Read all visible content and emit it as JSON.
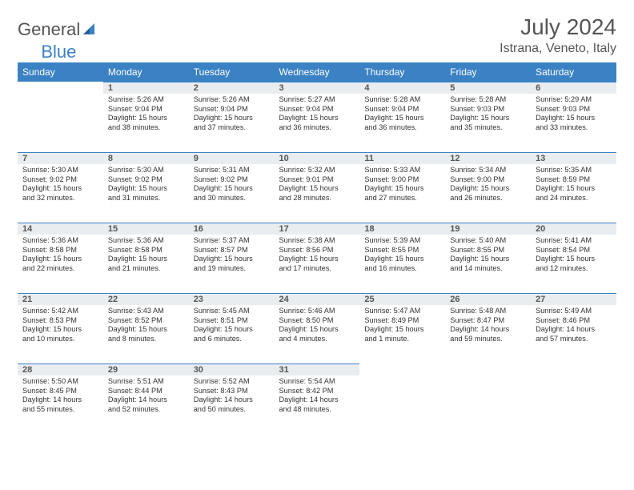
{
  "brand": {
    "part1": "General",
    "part2": "Blue"
  },
  "title": {
    "month": "July 2024",
    "location": "Istrana, Veneto, Italy"
  },
  "colors": {
    "header_bg": "#3b82c4",
    "daynum_bg": "#e9edf0",
    "daynum_border": "#3b82c4",
    "text": "#333333",
    "muted": "#555555",
    "background": "#ffffff"
  },
  "weekdays": [
    "Sunday",
    "Monday",
    "Tuesday",
    "Wednesday",
    "Thursday",
    "Friday",
    "Saturday"
  ],
  "weeks": [
    [
      null,
      {
        "n": "1",
        "sr": "Sunrise: 5:26 AM",
        "ss": "Sunset: 9:04 PM",
        "dl1": "Daylight: 15 hours",
        "dl2": "and 38 minutes."
      },
      {
        "n": "2",
        "sr": "Sunrise: 5:26 AM",
        "ss": "Sunset: 9:04 PM",
        "dl1": "Daylight: 15 hours",
        "dl2": "and 37 minutes."
      },
      {
        "n": "3",
        "sr": "Sunrise: 5:27 AM",
        "ss": "Sunset: 9:04 PM",
        "dl1": "Daylight: 15 hours",
        "dl2": "and 36 minutes."
      },
      {
        "n": "4",
        "sr": "Sunrise: 5:28 AM",
        "ss": "Sunset: 9:04 PM",
        "dl1": "Daylight: 15 hours",
        "dl2": "and 36 minutes."
      },
      {
        "n": "5",
        "sr": "Sunrise: 5:28 AM",
        "ss": "Sunset: 9:03 PM",
        "dl1": "Daylight: 15 hours",
        "dl2": "and 35 minutes."
      },
      {
        "n": "6",
        "sr": "Sunrise: 5:29 AM",
        "ss": "Sunset: 9:03 PM",
        "dl1": "Daylight: 15 hours",
        "dl2": "and 33 minutes."
      }
    ],
    [
      {
        "n": "7",
        "sr": "Sunrise: 5:30 AM",
        "ss": "Sunset: 9:02 PM",
        "dl1": "Daylight: 15 hours",
        "dl2": "and 32 minutes."
      },
      {
        "n": "8",
        "sr": "Sunrise: 5:30 AM",
        "ss": "Sunset: 9:02 PM",
        "dl1": "Daylight: 15 hours",
        "dl2": "and 31 minutes."
      },
      {
        "n": "9",
        "sr": "Sunrise: 5:31 AM",
        "ss": "Sunset: 9:02 PM",
        "dl1": "Daylight: 15 hours",
        "dl2": "and 30 minutes."
      },
      {
        "n": "10",
        "sr": "Sunrise: 5:32 AM",
        "ss": "Sunset: 9:01 PM",
        "dl1": "Daylight: 15 hours",
        "dl2": "and 28 minutes."
      },
      {
        "n": "11",
        "sr": "Sunrise: 5:33 AM",
        "ss": "Sunset: 9:00 PM",
        "dl1": "Daylight: 15 hours",
        "dl2": "and 27 minutes."
      },
      {
        "n": "12",
        "sr": "Sunrise: 5:34 AM",
        "ss": "Sunset: 9:00 PM",
        "dl1": "Daylight: 15 hours",
        "dl2": "and 26 minutes."
      },
      {
        "n": "13",
        "sr": "Sunrise: 5:35 AM",
        "ss": "Sunset: 8:59 PM",
        "dl1": "Daylight: 15 hours",
        "dl2": "and 24 minutes."
      }
    ],
    [
      {
        "n": "14",
        "sr": "Sunrise: 5:36 AM",
        "ss": "Sunset: 8:58 PM",
        "dl1": "Daylight: 15 hours",
        "dl2": "and 22 minutes."
      },
      {
        "n": "15",
        "sr": "Sunrise: 5:36 AM",
        "ss": "Sunset: 8:58 PM",
        "dl1": "Daylight: 15 hours",
        "dl2": "and 21 minutes."
      },
      {
        "n": "16",
        "sr": "Sunrise: 5:37 AM",
        "ss": "Sunset: 8:57 PM",
        "dl1": "Daylight: 15 hours",
        "dl2": "and 19 minutes."
      },
      {
        "n": "17",
        "sr": "Sunrise: 5:38 AM",
        "ss": "Sunset: 8:56 PM",
        "dl1": "Daylight: 15 hours",
        "dl2": "and 17 minutes."
      },
      {
        "n": "18",
        "sr": "Sunrise: 5:39 AM",
        "ss": "Sunset: 8:55 PM",
        "dl1": "Daylight: 15 hours",
        "dl2": "and 16 minutes."
      },
      {
        "n": "19",
        "sr": "Sunrise: 5:40 AM",
        "ss": "Sunset: 8:55 PM",
        "dl1": "Daylight: 15 hours",
        "dl2": "and 14 minutes."
      },
      {
        "n": "20",
        "sr": "Sunrise: 5:41 AM",
        "ss": "Sunset: 8:54 PM",
        "dl1": "Daylight: 15 hours",
        "dl2": "and 12 minutes."
      }
    ],
    [
      {
        "n": "21",
        "sr": "Sunrise: 5:42 AM",
        "ss": "Sunset: 8:53 PM",
        "dl1": "Daylight: 15 hours",
        "dl2": "and 10 minutes."
      },
      {
        "n": "22",
        "sr": "Sunrise: 5:43 AM",
        "ss": "Sunset: 8:52 PM",
        "dl1": "Daylight: 15 hours",
        "dl2": "and 8 minutes."
      },
      {
        "n": "23",
        "sr": "Sunrise: 5:45 AM",
        "ss": "Sunset: 8:51 PM",
        "dl1": "Daylight: 15 hours",
        "dl2": "and 6 minutes."
      },
      {
        "n": "24",
        "sr": "Sunrise: 5:46 AM",
        "ss": "Sunset: 8:50 PM",
        "dl1": "Daylight: 15 hours",
        "dl2": "and 4 minutes."
      },
      {
        "n": "25",
        "sr": "Sunrise: 5:47 AM",
        "ss": "Sunset: 8:49 PM",
        "dl1": "Daylight: 15 hours",
        "dl2": "and 1 minute."
      },
      {
        "n": "26",
        "sr": "Sunrise: 5:48 AM",
        "ss": "Sunset: 8:47 PM",
        "dl1": "Daylight: 14 hours",
        "dl2": "and 59 minutes."
      },
      {
        "n": "27",
        "sr": "Sunrise: 5:49 AM",
        "ss": "Sunset: 8:46 PM",
        "dl1": "Daylight: 14 hours",
        "dl2": "and 57 minutes."
      }
    ],
    [
      {
        "n": "28",
        "sr": "Sunrise: 5:50 AM",
        "ss": "Sunset: 8:45 PM",
        "dl1": "Daylight: 14 hours",
        "dl2": "and 55 minutes."
      },
      {
        "n": "29",
        "sr": "Sunrise: 5:51 AM",
        "ss": "Sunset: 8:44 PM",
        "dl1": "Daylight: 14 hours",
        "dl2": "and 52 minutes."
      },
      {
        "n": "30",
        "sr": "Sunrise: 5:52 AM",
        "ss": "Sunset: 8:43 PM",
        "dl1": "Daylight: 14 hours",
        "dl2": "and 50 minutes."
      },
      {
        "n": "31",
        "sr": "Sunrise: 5:54 AM",
        "ss": "Sunset: 8:42 PM",
        "dl1": "Daylight: 14 hours",
        "dl2": "and 48 minutes."
      },
      null,
      null,
      null
    ]
  ]
}
